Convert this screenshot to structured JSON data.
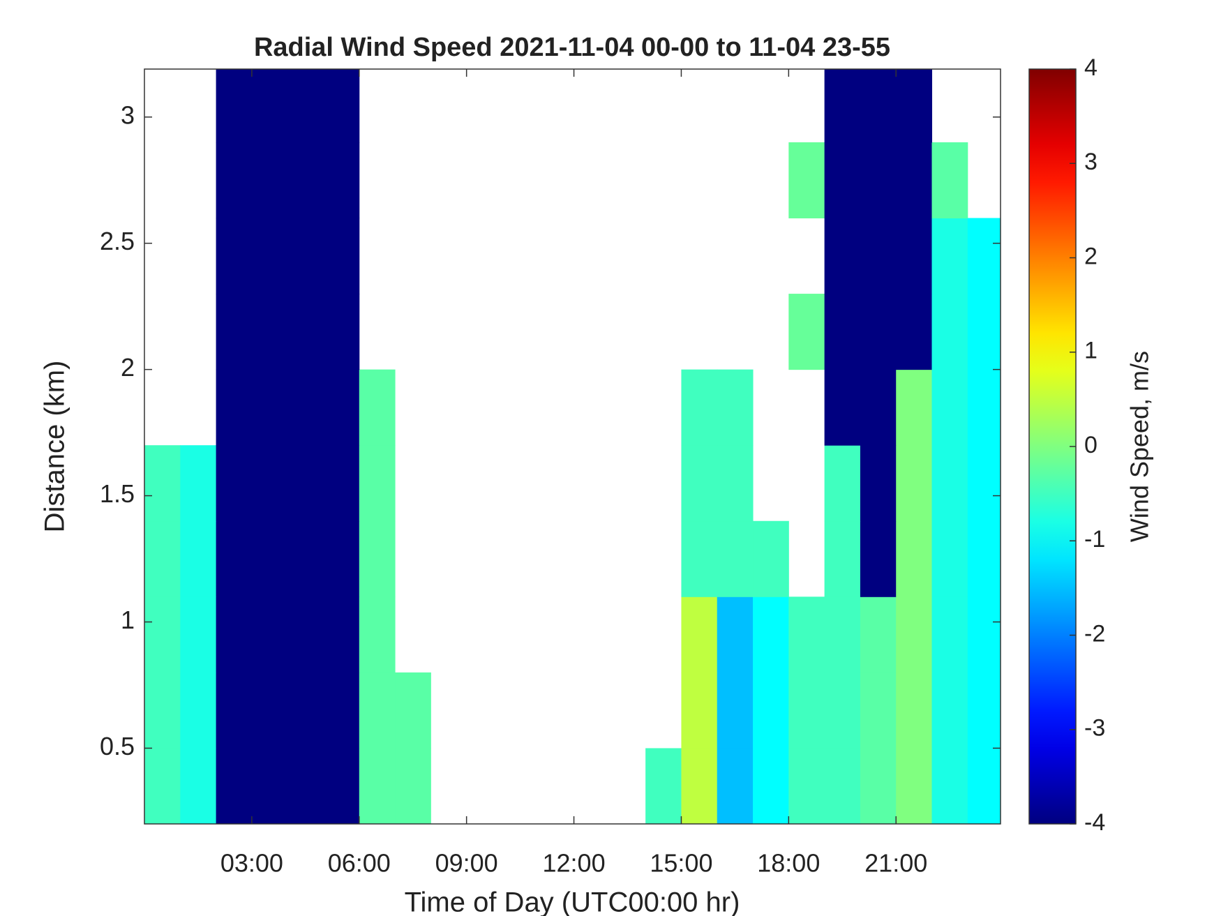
{
  "chart_data": {
    "type": "heatmap",
    "title": "Radial Wind Speed 2021-11-04 00-00 to 11-04 23-55",
    "x_label": "Time of Day (UTC00:00 hr)",
    "y_label": "Distance (km)",
    "colorbar_label": "Wind Speed, m/s",
    "colormap": "jet",
    "xlim": [
      0,
      23.92
    ],
    "ylim": [
      0.2,
      3.19
    ],
    "clim": [
      -4,
      4
    ],
    "xticks": [
      {
        "value": 3,
        "label": "03:00"
      },
      {
        "value": 6,
        "label": "06:00"
      },
      {
        "value": 9,
        "label": "09:00"
      },
      {
        "value": 12,
        "label": "12:00"
      },
      {
        "value": 15,
        "label": "15:00"
      },
      {
        "value": 18,
        "label": "18:00"
      },
      {
        "value": 21,
        "label": "21:00"
      }
    ],
    "yticks": [
      0.5,
      1,
      1.5,
      2,
      2.5,
      3
    ],
    "cticks": [
      -4,
      -3,
      -2,
      -1,
      0,
      1,
      2,
      3,
      4
    ],
    "x": [
      0.5,
      1.5,
      2.5,
      3.5,
      4.5,
      5.5,
      6.5,
      7.5,
      8.5,
      9.5,
      10.5,
      11.5,
      12.5,
      13.5,
      14.5,
      15.5,
      16.5,
      17.5,
      18.5,
      19.5,
      20.5,
      21.5,
      22.5,
      23.5
    ],
    "y": [
      0.35,
      0.65,
      0.95,
      1.25,
      1.55,
      1.85,
      2.15,
      2.45,
      2.75,
      3.05
    ],
    "z": [
      [
        -0.5,
        -0.8,
        -4,
        -4,
        -4,
        -4,
        -0.3,
        -0.3,
        null,
        null,
        null,
        null,
        null,
        null,
        -0.5,
        0.5,
        -1.5,
        -1,
        -0.5,
        -0.5,
        -0.3,
        0,
        -0.8,
        -1
      ],
      [
        -0.5,
        -0.8,
        -4,
        -4,
        -4,
        -4,
        -0.3,
        -0.3,
        null,
        null,
        null,
        null,
        null,
        null,
        null,
        0.5,
        -1.5,
        -1,
        -0.5,
        -0.5,
        -0.3,
        0,
        -0.8,
        -1
      ],
      [
        -0.5,
        -0.8,
        -4,
        -4,
        -4,
        -4,
        -0.3,
        null,
        null,
        null,
        null,
        null,
        null,
        null,
        null,
        0.5,
        -1.5,
        -1,
        -0.5,
        -0.5,
        -0.3,
        0,
        -0.8,
        -1
      ],
      [
        -0.5,
        -0.8,
        -4,
        -4,
        -4,
        -4,
        -0.3,
        null,
        null,
        null,
        null,
        null,
        null,
        null,
        null,
        -0.5,
        -0.5,
        -0.5,
        null,
        -0.5,
        -4,
        0,
        -0.8,
        -1
      ],
      [
        -0.5,
        -0.8,
        -4,
        -4,
        -4,
        -4,
        -0.3,
        null,
        null,
        null,
        null,
        null,
        null,
        null,
        null,
        -0.5,
        -0.5,
        null,
        null,
        -0.5,
        -4,
        0,
        -0.8,
        -1
      ],
      [
        null,
        null,
        -4,
        -4,
        -4,
        -4,
        -0.3,
        null,
        null,
        null,
        null,
        null,
        null,
        null,
        null,
        -0.5,
        -0.5,
        null,
        null,
        -4,
        -4,
        0,
        -0.8,
        -1
      ],
      [
        null,
        null,
        -4,
        -4,
        -4,
        -4,
        null,
        null,
        null,
        null,
        null,
        null,
        null,
        null,
        null,
        null,
        null,
        null,
        -0.2,
        -4,
        -4,
        -4,
        -0.8,
        -1
      ],
      [
        null,
        null,
        -4,
        -4,
        -4,
        -4,
        null,
        null,
        null,
        null,
        null,
        null,
        null,
        null,
        null,
        null,
        null,
        null,
        null,
        -4,
        -4,
        -4,
        -0.8,
        -1
      ],
      [
        null,
        null,
        -4,
        -4,
        -4,
        -4,
        null,
        null,
        null,
        null,
        null,
        null,
        null,
        null,
        null,
        null,
        null,
        null,
        -0.2,
        -4,
        -4,
        -4,
        -0.3,
        null
      ],
      [
        null,
        null,
        -4,
        -4,
        -4,
        -4,
        null,
        null,
        null,
        null,
        null,
        null,
        null,
        null,
        null,
        null,
        null,
        null,
        null,
        -4,
        -4,
        -4,
        null,
        null
      ]
    ]
  }
}
